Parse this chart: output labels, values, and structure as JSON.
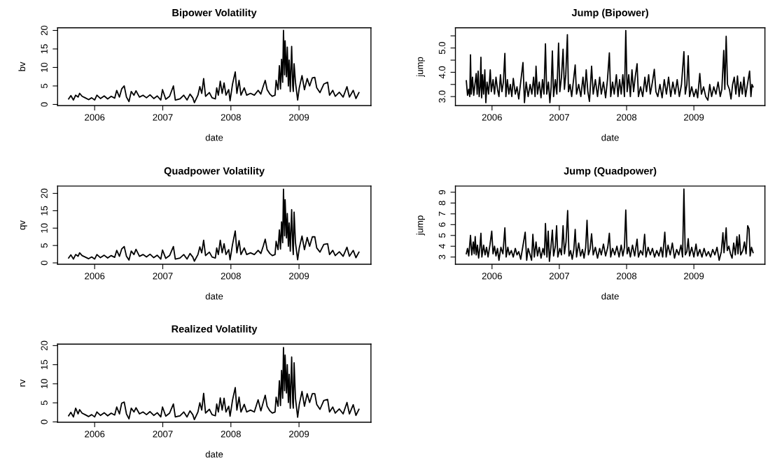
{
  "chart_data": [
    {
      "type": "line",
      "title": "Bipower Volatility",
      "xlabel": "date",
      "ylabel": "bv",
      "xlim": [
        2005.456,
        2010.056
      ],
      "xticks": [
        2006,
        2007,
        2008,
        2009
      ],
      "ylim": [
        -0.3,
        20.7
      ],
      "yticks": [
        0,
        5,
        10,
        15,
        20
      ],
      "x": [
        2005.618,
        2005.651,
        2005.688,
        2005.721,
        2005.757,
        2005.779,
        2005.816,
        2005.86,
        2005.912,
        2005.956,
        2006.0,
        2006.033,
        2006.085,
        2006.14,
        2006.191,
        2006.243,
        2006.294,
        2006.324,
        2006.364,
        2006.397,
        2006.434,
        2006.467,
        2006.504,
        2006.537,
        2006.577,
        2006.607,
        2006.658,
        2006.71,
        2006.761,
        2006.813,
        2006.868,
        2006.919,
        2006.971,
        2006.996,
        2007.044,
        2007.1,
        2007.156,
        2007.184,
        2007.252,
        2007.308,
        2007.356,
        2007.4,
        2007.44,
        2007.464,
        2007.516,
        2007.544,
        2007.572,
        2007.6,
        2007.628,
        2007.684,
        2007.724,
        2007.772,
        2007.792,
        2007.816,
        2007.844,
        2007.872,
        2007.9,
        2007.928,
        2007.968,
        2007.988,
        2008.024,
        2008.064,
        2008.088,
        2008.12,
        2008.148,
        2008.196,
        2008.232,
        2008.288,
        2008.344,
        2008.4,
        2008.44,
        2008.476,
        2008.504,
        2008.532,
        2008.572,
        2008.608,
        2008.648,
        2008.664,
        2008.692,
        2008.712,
        2008.728,
        2008.744,
        2008.76,
        2008.772,
        2008.788,
        2008.796,
        2008.816,
        2008.828,
        2008.844,
        2008.856,
        2008.872,
        2008.892,
        2008.908,
        2008.916,
        2008.928,
        2008.948,
        2008.98,
        2009.004,
        2009.044,
        2009.08,
        2009.12,
        2009.156,
        2009.196,
        2009.232,
        2009.26,
        2009.308,
        2009.364,
        2009.42,
        2009.448,
        2009.496,
        2009.532,
        2009.592,
        2009.648,
        2009.704,
        2009.74,
        2009.796,
        2009.836,
        2009.88
      ],
      "series": [
        {
          "color": "#000000",
          "values": [
            1.5,
            2.4,
            1.2,
            2.5,
            2.0,
            3.0,
            2.2,
            1.8,
            1.3,
            1.8,
            1.2,
            2.5,
            1.6,
            2.3,
            1.5,
            2.2,
            1.7,
            3.8,
            2.0,
            4.2,
            5.0,
            2.0,
            0.8,
            3.5,
            2.5,
            3.7,
            2.0,
            2.5,
            1.8,
            2.6,
            1.6,
            2.3,
            1.2,
            4.0,
            1.4,
            2.2,
            5.0,
            1.2,
            1.5,
            2.5,
            1.2,
            2.8,
            1.8,
            0.5,
            2.5,
            4.8,
            3.0,
            7.0,
            2.2,
            3.2,
            1.8,
            1.5,
            4.5,
            2.5,
            6.3,
            3.0,
            5.8,
            2.5,
            4.0,
            1.0,
            5.5,
            8.8,
            3.0,
            6.5,
            2.5,
            4.5,
            2.5,
            3.0,
            2.5,
            3.8,
            2.8,
            5.0,
            6.5,
            4.0,
            2.8,
            2.2,
            2.5,
            6.5,
            4.0,
            10.5,
            4.2,
            12.2,
            6.0,
            20.0,
            8.0,
            17.2,
            7.5,
            15.5,
            5.0,
            12.0,
            3.5,
            15.7,
            5.0,
            3.5,
            11.0,
            6.0,
            1.2,
            4.5,
            7.8,
            4.0,
            7.0,
            5.0,
            7.2,
            7.3,
            4.5,
            3.2,
            5.5,
            6.0,
            2.5,
            3.8,
            2.2,
            3.3,
            2.0,
            4.8,
            2.0,
            3.8,
            1.6,
            3.2
          ]
        }
      ]
    },
    {
      "type": "line",
      "title": "Jump (Bipower)",
      "xlabel": "date",
      "ylabel": "jump",
      "xlim": [
        2005.456,
        2010.056
      ],
      "xticks": [
        2006,
        2007,
        2008,
        2009
      ],
      "ylim": [
        2.63,
        5.83
      ],
      "yticks": [
        {
          "value": 3.0,
          "label": "3.0"
        },
        {
          "value": 3.5,
          "label": null
        },
        {
          "value": 4.0,
          "label": "4.0"
        },
        {
          "value": 4.5,
          "label": null
        },
        {
          "value": 5.0,
          "label": "5.0"
        },
        {
          "value": 5.5,
          "label": null
        }
      ],
      "x": [
        2005.618,
        2005.636,
        2005.654,
        2005.669,
        2005.68,
        2005.691,
        2005.71,
        2005.728,
        2005.746,
        2005.765,
        2005.779,
        2005.794,
        2005.809,
        2005.824,
        2005.835,
        2005.846,
        2005.86,
        2005.875,
        2005.893,
        2005.908,
        2005.926,
        2005.949,
        2005.974,
        2005.989,
        2006.015,
        2006.037,
        2006.059,
        2006.081,
        2006.103,
        2006.125,
        2006.147,
        2006.169,
        2006.191,
        2006.206,
        2006.228,
        2006.25,
        2006.272,
        2006.294,
        2006.316,
        2006.346,
        2006.371,
        2006.397,
        2006.426,
        2006.46,
        2006.482,
        2006.507,
        2006.537,
        2006.566,
        2006.592,
        2006.618,
        2006.64,
        2006.654,
        2006.676,
        2006.702,
        2006.728,
        2006.75,
        2006.772,
        2006.794,
        2006.813,
        2006.838,
        2006.86,
        2006.879,
        2006.897,
        2006.915,
        2006.941,
        2006.963,
        2006.989,
        2007.008,
        2007.032,
        2007.056,
        2007.076,
        2007.096,
        2007.12,
        2007.136,
        2007.16,
        2007.184,
        2007.208,
        2007.236,
        2007.256,
        2007.288,
        2007.32,
        2007.352,
        2007.376,
        2007.4,
        2007.424,
        2007.448,
        2007.48,
        2007.504,
        2007.536,
        2007.568,
        2007.6,
        2007.624,
        2007.656,
        2007.688,
        2007.716,
        2007.744,
        2007.764,
        2007.792,
        2007.816,
        2007.848,
        2007.872,
        2007.896,
        2007.92,
        2007.944,
        2007.968,
        2007.988,
        2008.008,
        2008.032,
        2008.056,
        2008.08,
        2008.104,
        2008.128,
        2008.156,
        2008.176,
        2008.208,
        2008.24,
        2008.272,
        2008.296,
        2008.328,
        2008.352,
        2008.384,
        2008.412,
        2008.436,
        2008.464,
        2008.496,
        2008.528,
        2008.56,
        2008.592,
        2008.624,
        2008.656,
        2008.688,
        2008.72,
        2008.752,
        2008.784,
        2008.816,
        2008.852,
        2008.872,
        2008.896,
        2008.916,
        2008.936,
        2008.968,
        2009.0,
        2009.032,
        2009.056,
        2009.088,
        2009.112,
        2009.144,
        2009.176,
        2009.208,
        2009.236,
        2009.264,
        2009.296,
        2009.328,
        2009.36,
        2009.392,
        2009.416,
        2009.444,
        2009.46,
        2009.48,
        2009.5,
        2009.528,
        2009.552,
        2009.576,
        2009.6,
        2009.624,
        2009.648,
        2009.672,
        2009.696,
        2009.72,
        2009.744,
        2009.768,
        2009.796,
        2009.828,
        2009.848,
        2009.864,
        2009.88
      ],
      "series": [
        {
          "color": "#000000",
          "values": [
            3.65,
            3.05,
            3.3,
            3.0,
            4.72,
            3.1,
            3.8,
            3.05,
            3.5,
            3.95,
            3.1,
            4.05,
            3.0,
            3.4,
            4.62,
            2.95,
            3.9,
            3.1,
            4.1,
            2.75,
            3.6,
            3.1,
            4.1,
            3.2,
            3.7,
            3.1,
            3.8,
            3.3,
            3.0,
            3.9,
            3.2,
            3.6,
            4.78,
            3.0,
            3.7,
            3.1,
            3.5,
            3.0,
            3.75,
            3.1,
            3.4,
            2.9,
            3.6,
            4.4,
            2.75,
            3.6,
            3.0,
            3.5,
            3.1,
            3.8,
            3.0,
            4.25,
            3.1,
            3.6,
            2.95,
            3.7,
            3.1,
            5.17,
            3.1,
            3.6,
            2.75,
            3.4,
            4.88,
            3.0,
            3.7,
            3.1,
            5.2,
            3.2,
            3.8,
            4.95,
            3.3,
            3.9,
            5.55,
            3.2,
            3.5,
            3.0,
            3.6,
            4.3,
            3.1,
            3.5,
            3.0,
            3.8,
            3.1,
            4.1,
            3.2,
            2.8,
            4.25,
            3.1,
            3.7,
            3.0,
            3.8,
            3.1,
            3.6,
            2.95,
            3.7,
            4.8,
            3.0,
            3.6,
            3.1,
            3.9,
            3.0,
            3.7,
            3.1,
            3.9,
            3.0,
            5.72,
            3.2,
            3.9,
            3.0,
            4.1,
            3.2,
            3.8,
            4.35,
            3.0,
            3.4,
            3.0,
            3.8,
            3.2,
            3.9,
            3.1,
            3.6,
            4.12,
            3.2,
            3.0,
            3.5,
            2.95,
            3.7,
            3.1,
            3.8,
            3.0,
            3.6,
            3.1,
            3.7,
            3.0,
            3.5,
            4.85,
            3.1,
            3.5,
            4.68,
            3.0,
            3.4,
            3.0,
            3.3,
            2.95,
            3.95,
            3.1,
            3.4,
            3.0,
            2.85,
            3.5,
            3.0,
            3.4,
            3.1,
            3.6,
            3.0,
            3.3,
            4.9,
            3.3,
            5.48,
            3.5,
            3.3,
            2.9,
            3.5,
            3.8,
            3.1,
            3.85,
            3.0,
            3.6,
            3.1,
            3.8,
            3.0,
            3.5,
            4.05,
            3.0,
            3.5,
            3.4
          ]
        }
      ]
    },
    {
      "type": "line",
      "title": "Quadpower Volatility",
      "xlabel": "date",
      "ylabel": "qv",
      "xlim": [
        2005.456,
        2010.056
      ],
      "xticks": [
        2006,
        2007,
        2008,
        2009
      ],
      "ylim": [
        -0.4,
        22.1
      ],
      "yticks": [
        0,
        5,
        10,
        15,
        20
      ],
      "x": [
        2005.618,
        2005.651,
        2005.688,
        2005.721,
        2005.757,
        2005.779,
        2005.816,
        2005.86,
        2005.912,
        2005.956,
        2006.0,
        2006.033,
        2006.085,
        2006.14,
        2006.191,
        2006.243,
        2006.294,
        2006.324,
        2006.364,
        2006.397,
        2006.434,
        2006.467,
        2006.504,
        2006.537,
        2006.577,
        2006.607,
        2006.658,
        2006.71,
        2006.761,
        2006.813,
        2006.868,
        2006.919,
        2006.971,
        2006.996,
        2007.044,
        2007.1,
        2007.156,
        2007.184,
        2007.252,
        2007.308,
        2007.356,
        2007.4,
        2007.44,
        2007.464,
        2007.516,
        2007.544,
        2007.572,
        2007.6,
        2007.628,
        2007.684,
        2007.724,
        2007.772,
        2007.792,
        2007.816,
        2007.844,
        2007.872,
        2007.9,
        2007.928,
        2007.968,
        2007.988,
        2008.024,
        2008.064,
        2008.088,
        2008.12,
        2008.148,
        2008.196,
        2008.232,
        2008.288,
        2008.344,
        2008.4,
        2008.44,
        2008.476,
        2008.504,
        2008.532,
        2008.572,
        2008.608,
        2008.648,
        2008.664,
        2008.692,
        2008.712,
        2008.728,
        2008.744,
        2008.76,
        2008.772,
        2008.788,
        2008.796,
        2008.816,
        2008.828,
        2008.844,
        2008.856,
        2008.872,
        2008.892,
        2008.908,
        2008.916,
        2008.928,
        2008.948,
        2008.98,
        2009.004,
        2009.044,
        2009.08,
        2009.12,
        2009.156,
        2009.196,
        2009.232,
        2009.26,
        2009.308,
        2009.364,
        2009.42,
        2009.448,
        2009.496,
        2009.532,
        2009.592,
        2009.648,
        2009.704,
        2009.74,
        2009.796,
        2009.836,
        2009.88
      ],
      "series": [
        {
          "color": "#000000",
          "values": [
            1.4,
            2.3,
            1.1,
            2.4,
            1.9,
            2.9,
            2.1,
            1.7,
            1.2,
            1.7,
            1.1,
            2.4,
            1.5,
            2.2,
            1.4,
            2.1,
            1.6,
            3.6,
            1.9,
            4.0,
            4.7,
            1.9,
            0.8,
            3.4,
            2.4,
            3.9,
            1.9,
            2.4,
            1.7,
            2.5,
            1.5,
            2.2,
            1.1,
            3.7,
            1.3,
            2.1,
            4.7,
            1.1,
            1.4,
            2.4,
            1.1,
            2.7,
            1.7,
            0.5,
            2.4,
            4.6,
            2.9,
            6.5,
            2.1,
            3.1,
            1.7,
            1.4,
            4.3,
            2.4,
            6.5,
            2.9,
            5.5,
            2.4,
            3.8,
            0.9,
            5.3,
            9.2,
            2.9,
            6.4,
            2.4,
            4.3,
            2.4,
            2.9,
            2.4,
            3.6,
            2.7,
            4.9,
            6.8,
            3.8,
            2.7,
            2.1,
            2.4,
            6.2,
            3.8,
            9.5,
            4.0,
            11.8,
            5.8,
            21.2,
            7.8,
            18.2,
            7.2,
            14.2,
            4.8,
            11.5,
            3.4,
            15.3,
            4.8,
            2.4,
            14.6,
            5.8,
            0.9,
            4.3,
            7.7,
            3.8,
            7.3,
            4.8,
            7.5,
            7.5,
            4.3,
            3.1,
            5.3,
            5.5,
            2.4,
            3.6,
            2.1,
            3.2,
            1.9,
            4.5,
            1.9,
            3.6,
            1.5,
            3.1
          ]
        }
      ]
    },
    {
      "type": "line",
      "title": "Jump (Quadpower)",
      "xlabel": "date",
      "ylabel": "jump",
      "xlim": [
        2005.456,
        2010.056
      ],
      "xticks": [
        2006,
        2007,
        2008,
        2009
      ],
      "ylim": [
        2.33,
        9.57
      ],
      "yticks": [
        3,
        4,
        5,
        6,
        7,
        8,
        9
      ],
      "x": [
        2005.618,
        2005.636,
        2005.654,
        2005.68,
        2005.699,
        2005.721,
        2005.735,
        2005.75,
        2005.765,
        2005.783,
        2005.801,
        2005.82,
        2005.835,
        2005.849,
        2005.875,
        2005.897,
        2005.919,
        2005.941,
        2005.971,
        2005.996,
        2006.015,
        2006.037,
        2006.059,
        2006.081,
        2006.103,
        2006.132,
        2006.162,
        2006.191,
        2006.21,
        2006.235,
        2006.257,
        2006.287,
        2006.316,
        2006.346,
        2006.371,
        2006.397,
        2006.426,
        2006.456,
        2006.493,
        2006.515,
        2006.537,
        2006.566,
        2006.588,
        2006.607,
        2006.629,
        2006.654,
        2006.676,
        2006.702,
        2006.728,
        2006.757,
        2006.779,
        2006.794,
        2006.816,
        2006.835,
        2006.853,
        2006.875,
        2006.897,
        2006.915,
        2006.941,
        2006.96,
        2006.978,
        2007.008,
        2007.032,
        2007.056,
        2007.076,
        2007.1,
        2007.124,
        2007.144,
        2007.168,
        2007.192,
        2007.216,
        2007.236,
        2007.256,
        2007.288,
        2007.316,
        2007.344,
        2007.368,
        2007.392,
        2007.412,
        2007.432,
        2007.456,
        2007.48,
        2007.504,
        2007.536,
        2007.568,
        2007.6,
        2007.624,
        2007.656,
        2007.688,
        2007.72,
        2007.744,
        2007.764,
        2007.792,
        2007.824,
        2007.856,
        2007.888,
        2007.92,
        2007.944,
        2007.968,
        2007.988,
        2008.008,
        2008.032,
        2008.056,
        2008.088,
        2008.12,
        2008.156,
        2008.176,
        2008.208,
        2008.24,
        2008.268,
        2008.288,
        2008.32,
        2008.352,
        2008.384,
        2008.416,
        2008.448,
        2008.48,
        2008.512,
        2008.536,
        2008.568,
        2008.588,
        2008.616,
        2008.648,
        2008.68,
        2008.712,
        2008.744,
        2008.776,
        2008.808,
        2008.832,
        2008.852,
        2008.872,
        2008.896,
        2008.916,
        2008.936,
        2008.968,
        2009.0,
        2009.032,
        2009.056,
        2009.088,
        2009.12,
        2009.152,
        2009.184,
        2009.216,
        2009.248,
        2009.28,
        2009.312,
        2009.344,
        2009.376,
        2009.408,
        2009.432,
        2009.448,
        2009.48,
        2009.496,
        2009.52,
        2009.544,
        2009.568,
        2009.592,
        2009.616,
        2009.64,
        2009.656,
        2009.676,
        2009.696,
        2009.728,
        2009.752,
        2009.776,
        2009.8,
        2009.82,
        2009.836,
        2009.856,
        2009.88
      ],
      "series": [
        {
          "color": "#000000",
          "values": [
            3.3,
            3.8,
            3.1,
            5.0,
            3.2,
            4.4,
            3.3,
            4.9,
            3.2,
            4.1,
            2.9,
            3.9,
            5.2,
            3.0,
            4.1,
            3.2,
            3.9,
            3.0,
            4.2,
            5.4,
            3.3,
            4.0,
            3.1,
            3.8,
            2.7,
            3.9,
            3.3,
            5.7,
            3.0,
            3.9,
            3.2,
            3.6,
            3.0,
            3.8,
            3.2,
            3.5,
            2.8,
            3.9,
            5.3,
            2.7,
            3.8,
            3.2,
            2.7,
            5.1,
            3.0,
            4.4,
            3.1,
            3.9,
            2.9,
            3.8,
            3.2,
            6.1,
            3.0,
            5.4,
            2.6,
            3.9,
            5.5,
            3.1,
            4.0,
            5.9,
            3.0,
            3.8,
            3.2,
            5.9,
            3.3,
            4.4,
            7.3,
            3.1,
            3.6,
            2.8,
            3.7,
            5.55,
            3.0,
            4.3,
            3.1,
            3.7,
            2.9,
            3.9,
            6.4,
            3.2,
            3.7,
            5.15,
            3.2,
            3.9,
            2.9,
            3.8,
            3.2,
            4.2,
            3.1,
            3.9,
            5.2,
            3.0,
            3.8,
            3.2,
            4.0,
            3.0,
            4.1,
            3.1,
            3.9,
            7.35,
            3.3,
            3.9,
            3.0,
            4.1,
            3.1,
            4.65,
            3.0,
            3.6,
            3.2,
            5.1,
            3.0,
            3.9,
            3.2,
            3.8,
            3.0,
            3.6,
            3.1,
            3.9,
            3.0,
            5.3,
            3.0,
            4.1,
            3.2,
            4.3,
            2.9,
            3.7,
            3.2,
            4.1,
            3.0,
            9.3,
            3.2,
            3.5,
            4.7,
            3.1,
            3.9,
            3.0,
            4.2,
            3.1,
            3.7,
            3.0,
            3.8,
            3.1,
            3.5,
            3.0,
            3.7,
            3.2,
            3.9,
            2.7,
            3.5,
            5.25,
            3.4,
            5.7,
            3.6,
            4.0,
            3.3,
            2.9,
            4.3,
            3.2,
            4.9,
            3.3,
            5.05,
            3.2,
            3.6,
            4.4,
            3.3,
            5.9,
            5.6,
            3.1,
            3.9,
            3.4
          ]
        }
      ]
    },
    {
      "type": "line",
      "title": "Realized Volatility",
      "xlabel": "date",
      "ylabel": "rv",
      "xlim": [
        2005.456,
        2010.056
      ],
      "xticks": [
        2006,
        2007,
        2008,
        2009
      ],
      "ylim": [
        -0.1,
        20.4
      ],
      "yticks": [
        0,
        5,
        10,
        15,
        20
      ],
      "x": [
        2005.618,
        2005.651,
        2005.688,
        2005.721,
        2005.757,
        2005.779,
        2005.816,
        2005.86,
        2005.912,
        2005.956,
        2006.0,
        2006.033,
        2006.085,
        2006.14,
        2006.191,
        2006.243,
        2006.294,
        2006.324,
        2006.364,
        2006.397,
        2006.434,
        2006.467,
        2006.504,
        2006.537,
        2006.577,
        2006.607,
        2006.658,
        2006.71,
        2006.761,
        2006.813,
        2006.868,
        2006.919,
        2006.971,
        2006.996,
        2007.044,
        2007.1,
        2007.156,
        2007.184,
        2007.252,
        2007.308,
        2007.356,
        2007.4,
        2007.44,
        2007.464,
        2007.516,
        2007.544,
        2007.572,
        2007.6,
        2007.628,
        2007.684,
        2007.724,
        2007.772,
        2007.792,
        2007.816,
        2007.844,
        2007.872,
        2007.9,
        2007.928,
        2007.968,
        2007.988,
        2008.024,
        2008.064,
        2008.088,
        2008.12,
        2008.148,
        2008.196,
        2008.232,
        2008.288,
        2008.344,
        2008.4,
        2008.44,
        2008.476,
        2008.504,
        2008.532,
        2008.572,
        2008.608,
        2008.648,
        2008.664,
        2008.692,
        2008.712,
        2008.728,
        2008.744,
        2008.76,
        2008.772,
        2008.788,
        2008.796,
        2008.816,
        2008.828,
        2008.844,
        2008.856,
        2008.872,
        2008.892,
        2008.908,
        2008.916,
        2008.928,
        2008.948,
        2008.98,
        2009.004,
        2009.044,
        2009.08,
        2009.12,
        2009.156,
        2009.196,
        2009.232,
        2009.26,
        2009.308,
        2009.364,
        2009.42,
        2009.448,
        2009.496,
        2009.532,
        2009.592,
        2009.648,
        2009.704,
        2009.74,
        2009.796,
        2009.836,
        2009.88
      ],
      "series": [
        {
          "color": "#000000",
          "values": [
            1.6,
            2.5,
            1.3,
            3.6,
            2.1,
            3.2,
            2.3,
            1.9,
            1.4,
            1.9,
            1.3,
            2.6,
            1.7,
            2.4,
            1.6,
            2.3,
            1.8,
            3.9,
            2.1,
            4.9,
            5.2,
            2.1,
            0.8,
            3.6,
            2.6,
            3.7,
            2.1,
            2.6,
            1.9,
            2.7,
            1.7,
            2.4,
            1.3,
            3.9,
            1.5,
            2.3,
            4.7,
            1.3,
            1.6,
            2.6,
            1.3,
            2.9,
            1.9,
            0.6,
            2.6,
            5.0,
            3.1,
            7.5,
            2.3,
            3.3,
            1.9,
            1.6,
            4.7,
            2.6,
            6.3,
            3.1,
            6.2,
            2.6,
            4.1,
            1.5,
            5.7,
            9.0,
            3.1,
            6.5,
            2.6,
            4.6,
            2.6,
            3.1,
            2.6,
            5.8,
            2.9,
            5.2,
            7.0,
            4.1,
            2.9,
            2.3,
            2.6,
            6.5,
            4.1,
            10.8,
            4.3,
            13.5,
            6.2,
            19.5,
            8.2,
            17.5,
            7.6,
            15.0,
            5.1,
            12.5,
            3.6,
            17.0,
            5.1,
            3.6,
            15.5,
            6.2,
            1.2,
            4.6,
            8.0,
            4.1,
            7.4,
            5.1,
            7.4,
            7.4,
            4.6,
            3.3,
            5.6,
            5.9,
            2.6,
            3.9,
            2.3,
            3.4,
            2.1,
            5.1,
            2.1,
            4.5,
            1.7,
            3.3
          ]
        }
      ]
    }
  ]
}
